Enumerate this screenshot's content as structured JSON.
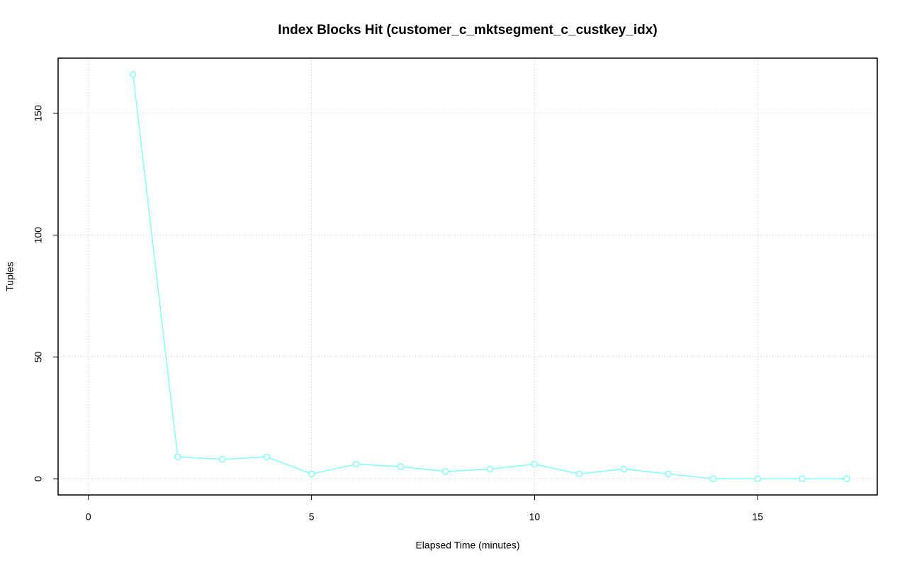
{
  "chart_data": {
    "type": "line",
    "title": "Index Blocks Hit (customer_c_mktsegment_c_custkey_idx)",
    "x_label": "Elapsed Time (minutes)",
    "y_label": "Tuples",
    "x": [
      1,
      2,
      3,
      4,
      5,
      6,
      7,
      8,
      9,
      10,
      11,
      12,
      13,
      14,
      15,
      16,
      17
    ],
    "values": [
      166,
      9,
      8,
      9,
      2,
      6,
      5,
      3,
      4,
      6,
      2,
      4,
      2,
      0,
      0,
      0,
      0
    ],
    "color": "#80ffff",
    "xlim": [
      -0.68,
      17.68
    ],
    "xticks": [
      0,
      5,
      10,
      15
    ],
    "ylim": [
      -6.64,
      172.64
    ],
    "yticks": [
      0,
      50,
      100,
      150
    ],
    "grid": true
  }
}
